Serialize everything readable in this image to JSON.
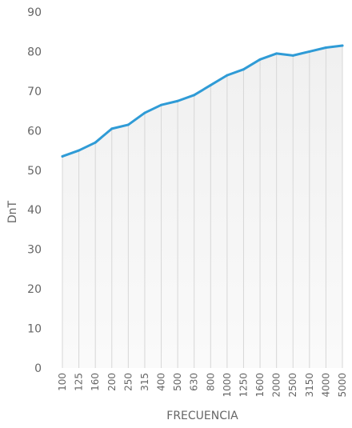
{
  "chart_data": {
    "type": "line",
    "title": "",
    "xlabel": "FRECUENCIA",
    "ylabel": "DnT",
    "ylim": [
      0,
      90
    ],
    "yticks": [
      0,
      10,
      20,
      30,
      40,
      50,
      60,
      70,
      80,
      90
    ],
    "categories": [
      "100",
      "125",
      "160",
      "200",
      "250",
      "315",
      "400",
      "500",
      "630",
      "800",
      "1000",
      "1250",
      "1600",
      "2000",
      "2500",
      "3150",
      "4000",
      "5000"
    ],
    "series": [
      {
        "values": [
          53.5,
          55,
          57,
          60.5,
          61.5,
          64.5,
          66.5,
          67.5,
          69,
          71.5,
          74,
          75.5,
          78,
          79.5,
          79,
          80,
          81,
          81.5
        ],
        "color": "#2f9bd6"
      }
    ],
    "gridlines": "vertical",
    "area_fill": "light-gray gradient",
    "colors": {
      "line": "#2f9bd6",
      "grid": "#d7d7d7",
      "text": "#666666"
    }
  }
}
